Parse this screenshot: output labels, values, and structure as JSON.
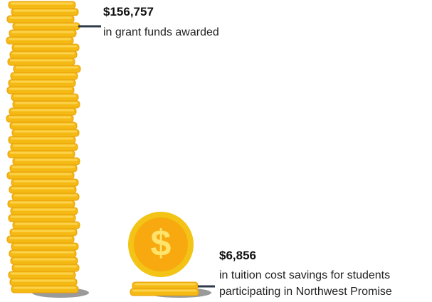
{
  "stats": [
    {
      "amount": "$156,757",
      "description": [
        "in grant funds awarded"
      ]
    },
    {
      "amount": "$6,856",
      "description": [
        "in tuition cost savings for students",
        "participating in Northwest Promise"
      ]
    }
  ]
}
